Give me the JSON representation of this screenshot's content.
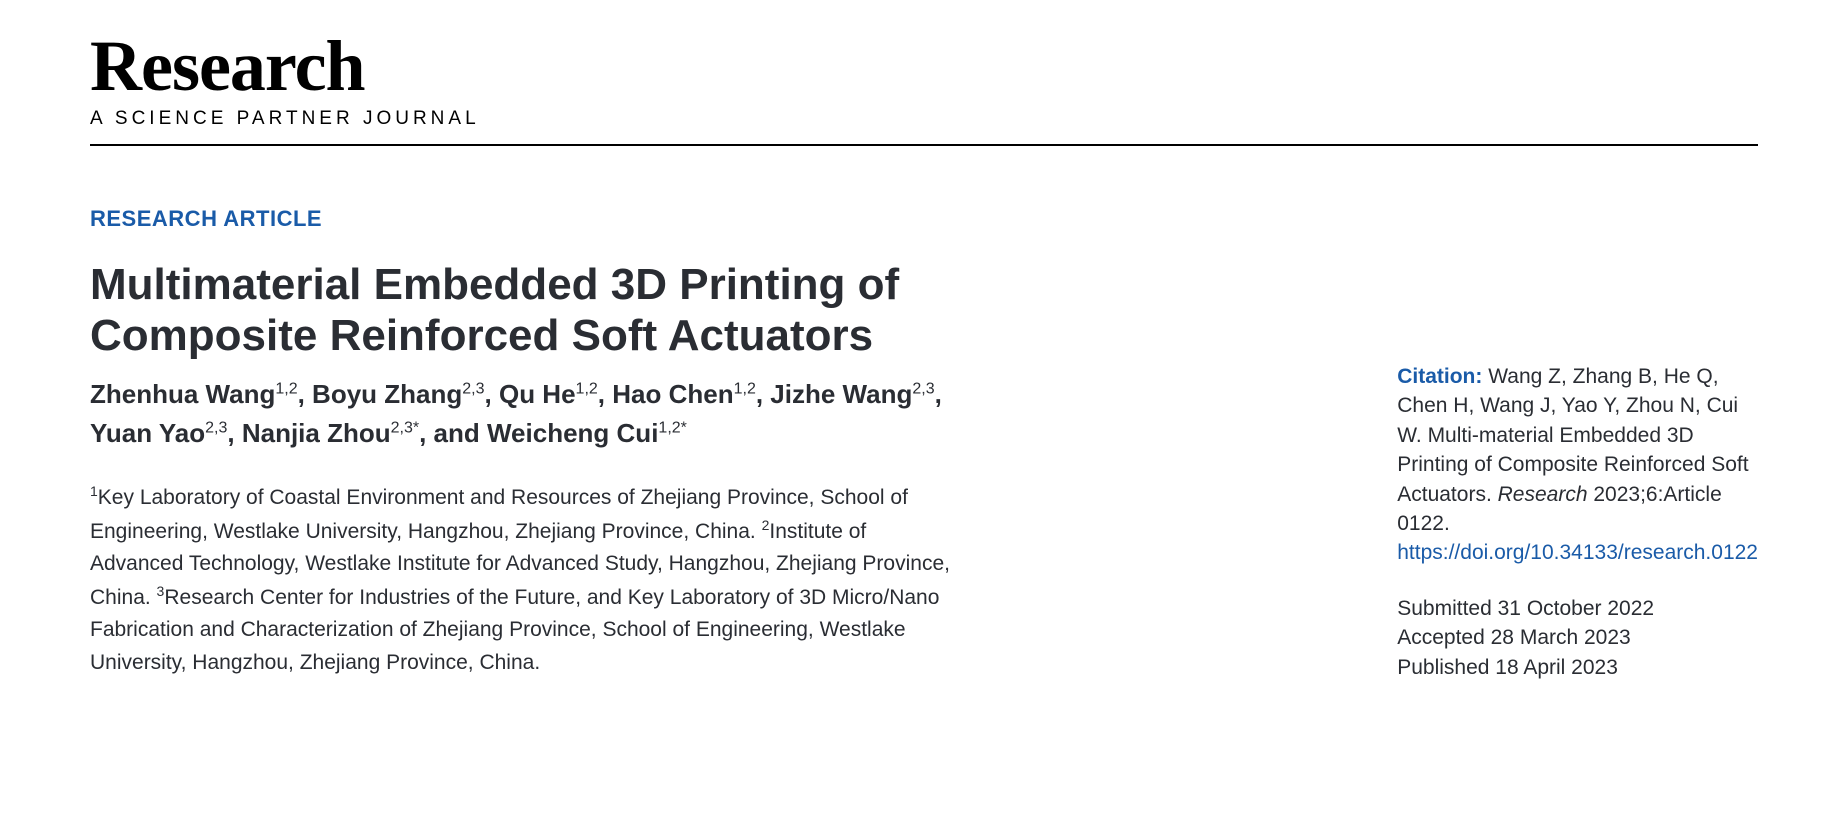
{
  "brand": {
    "title": "Research",
    "subtitle": "A SCIENCE PARTNER JOURNAL"
  },
  "article": {
    "type": "RESEARCH ARTICLE",
    "title": "Multimaterial Embedded 3D Printing of Composite Reinforced Soft Actuators",
    "authors_html": "Zhenhua Wang<sup>1,2</sup>, Boyu Zhang<sup>2,3</sup>, Qu He<sup>1,2</sup>, Hao Chen<sup>1,2</sup>, Jizhe Wang<sup>2,3</sup>, Yuan Yao<sup>2,3</sup>, Nanjia Zhou<sup>2,3*</sup>, and Weicheng Cui<sup>1,2*</sup>",
    "affiliations_html": "<sup>1</sup>Key Laboratory of Coastal Environment and Resources of Zhejiang Province, School of Engineering, Westlake University, Hangzhou, Zhejiang Province, China. <sup>2</sup>Institute of Advanced Technology, Westlake Institute for Advanced Study, Hangzhou, Zhejiang Province, China. <sup>3</sup>Research Center for Industries of the Future, and Key Laboratory of 3D Micro/Nano Fabrication and Characterization of Zhejiang Province, School of Engineering, Westlake University, Hangzhou, Zhejiang Province, China."
  },
  "citation": {
    "label": "Citation:",
    "text_before_journal": " Wang Z, Zhang B, He Q, Chen H, Wang J, Yao Y, Zhou N, Cui W. Multi-material Embedded 3D Printing of Composite Reinforced Soft Actuators. ",
    "journal": "Research",
    "text_after_journal": " 2023;6:Article 0122. ",
    "doi_url": "https://doi.org/10.34133/research.0122"
  },
  "dates": {
    "submitted": "Submitted 31 October 2022",
    "accepted": "Accepted 28 March 2023",
    "published": "Published 18 April 2023"
  },
  "colors": {
    "accent": "#1a5ba8",
    "text": "#2a2d33",
    "background": "#ffffff"
  },
  "typography": {
    "brand_title_size": 72,
    "brand_subtitle_size": 19,
    "article_type_size": 22,
    "article_title_size": 44,
    "authors_size": 26,
    "body_size": 21
  }
}
